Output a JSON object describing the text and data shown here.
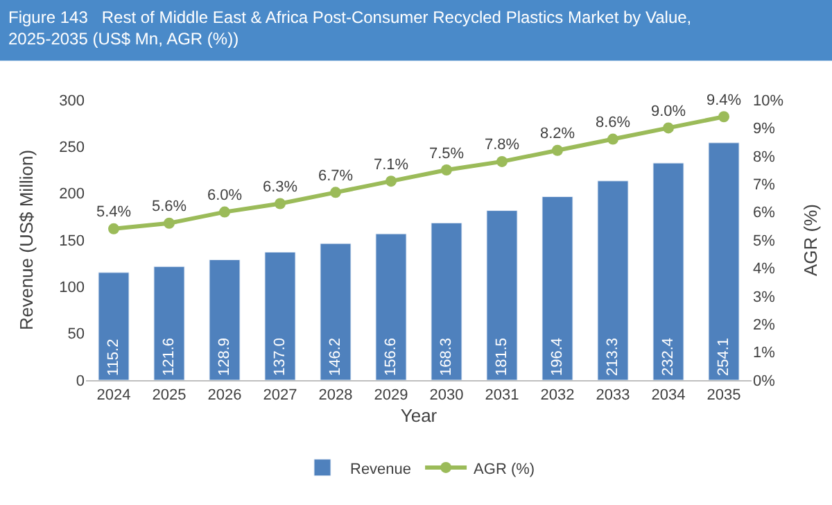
{
  "chart_data": {
    "type": "bar",
    "title": "Figure 143   Rest of Middle East & Africa Post-Consumer Recycled Plastics Market by Value, 2025-2035 (US$ Mn, AGR (%))",
    "categories": [
      "2024",
      "2025",
      "2026",
      "2027",
      "2028",
      "2029",
      "2030",
      "2031",
      "2032",
      "2033",
      "2034",
      "2035"
    ],
    "series": [
      {
        "name": "Revenue",
        "color": "#4f81bd",
        "values": [
          115.2,
          121.6,
          128.9,
          137.0,
          146.2,
          156.6,
          168.3,
          181.5,
          196.4,
          213.3,
          232.4,
          254.1
        ],
        "value_labels": [
          "115.2",
          "121.6",
          "128.9",
          "137.0",
          "146.2",
          "156.6",
          "168.3",
          "181.5",
          "196.4",
          "213.3",
          "232.4",
          "254.1"
        ]
      },
      {
        "name": "AGR (%)",
        "type": "line",
        "axis": "y2",
        "color": "#9bbb59",
        "marker": "circle",
        "values": [
          5.4,
          5.6,
          6.0,
          6.3,
          6.7,
          7.1,
          7.5,
          7.8,
          8.2,
          8.6,
          9.0,
          9.4
        ],
        "value_labels": [
          "5.4%",
          "5.6%",
          "6.0%",
          "6.3%",
          "6.7%",
          "7.1%",
          "7.5%",
          "7.8%",
          "8.2%",
          "8.6%",
          "9.0%",
          "9.4%"
        ]
      }
    ],
    "xlabel": "Year",
    "ylabel": "Revenue (US$ Million)",
    "y2label": "AGR (%)",
    "ylim": [
      0,
      300
    ],
    "yticks": [
      0,
      50,
      100,
      150,
      200,
      250,
      300
    ],
    "y2lim": [
      0,
      10
    ],
    "y2ticks": [
      {
        "value": 0,
        "label": "0%"
      },
      {
        "value": 1,
        "label": "1%"
      },
      {
        "value": 2,
        "label": "2%"
      },
      {
        "value": 3,
        "label": "3%"
      },
      {
        "value": 4,
        "label": "4%"
      },
      {
        "value": 5,
        "label": "5%"
      },
      {
        "value": 6,
        "label": "6%"
      },
      {
        "value": 7,
        "label": "7%"
      },
      {
        "value": 8,
        "label": "8%"
      },
      {
        "value": 9,
        "label": "9%"
      },
      {
        "value": 10,
        "label": "10%"
      }
    ],
    "legend": "bottom"
  }
}
